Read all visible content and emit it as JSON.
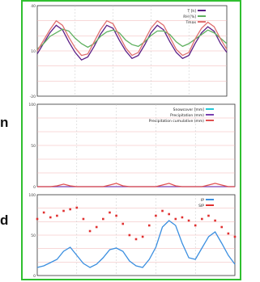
{
  "side_labels": [
    {
      "id": "n",
      "text": "n"
    },
    {
      "id": "d",
      "text": "d"
    }
  ],
  "chart_data": [
    {
      "type": "line",
      "panel": "top",
      "series": [
        {
          "name": "T [h]",
          "color": "#5a1f86",
          "values": [
            8,
            15,
            22,
            27,
            24,
            16,
            9,
            4,
            6,
            13,
            21,
            27,
            25,
            17,
            10,
            5,
            7,
            14,
            22,
            27,
            24,
            16,
            9,
            5,
            7,
            15,
            22,
            26,
            23,
            15,
            9
          ]
        },
        {
          "name": "RH [%]",
          "color": "#60b060",
          "values": [
            52,
            58,
            66,
            70,
            74,
            72,
            64,
            58,
            54,
            58,
            66,
            71,
            73,
            70,
            62,
            57,
            55,
            60,
            67,
            72,
            72,
            68,
            60,
            55,
            58,
            63,
            68,
            73,
            70,
            64,
            58
          ]
        },
        {
          "name": "Tmax",
          "color": "#e07070",
          "values": [
            10,
            17,
            24,
            30,
            27,
            19,
            12,
            7,
            8,
            16,
            24,
            30,
            28,
            20,
            12,
            7,
            9,
            17,
            25,
            30,
            27,
            19,
            11,
            7,
            9,
            18,
            25,
            29,
            26,
            18,
            11
          ]
        }
      ],
      "y_left": {
        "ylim": [
          -20,
          40
        ]
      },
      "y_right": {
        "ylim": [
          0,
          100
        ]
      },
      "legend_position": "top-right",
      "grid": true
    },
    {
      "type": "line",
      "panel": "middle",
      "series": [
        {
          "name": "Snowcover [mm]",
          "color": "#22c8d8",
          "values": []
        },
        {
          "name": "Precipitation (mm)",
          "color": "#7a3fb0",
          "values": [
            0,
            0,
            0,
            0,
            0,
            0,
            0,
            0,
            0,
            0,
            0,
            0,
            0,
            0,
            0,
            0,
            0,
            0,
            0,
            0,
            0,
            0,
            0,
            0,
            0,
            0,
            0,
            0,
            0,
            0,
            0
          ]
        },
        {
          "name": "Precipitation cumulative (mm)",
          "color": "#e05050",
          "values": [
            0,
            0,
            0,
            1,
            3,
            1,
            0,
            0,
            0,
            0,
            0,
            2,
            4,
            1,
            0,
            0,
            0,
            0,
            0,
            2,
            4,
            1,
            0,
            0,
            0,
            0,
            2,
            4,
            2,
            0,
            0
          ]
        }
      ],
      "ylim": [
        0,
        100
      ],
      "legend_position": "top-right",
      "grid": true
    },
    {
      "type": "scatter",
      "panel": "bottom",
      "series": [
        {
          "name": "IP",
          "color": "#3b8fe0",
          "kind": "line",
          "values": [
            10,
            12,
            16,
            20,
            30,
            35,
            25,
            15,
            10,
            14,
            22,
            32,
            34,
            30,
            18,
            12,
            10,
            20,
            35,
            60,
            68,
            62,
            40,
            22,
            20,
            34,
            48,
            54,
            40,
            25,
            14
          ]
        },
        {
          "name": "SIP",
          "color": "#e03030",
          "kind": "scatter",
          "values": [
            70,
            78,
            72,
            74,
            80,
            82,
            84,
            70,
            55,
            60,
            70,
            78,
            74,
            64,
            50,
            45,
            48,
            62,
            74,
            80,
            76,
            70,
            72,
            68,
            62,
            70,
            74,
            68,
            60,
            52,
            48
          ]
        }
      ],
      "ylim": [
        0,
        100
      ],
      "legend_position": "top-right",
      "grid": true
    }
  ]
}
